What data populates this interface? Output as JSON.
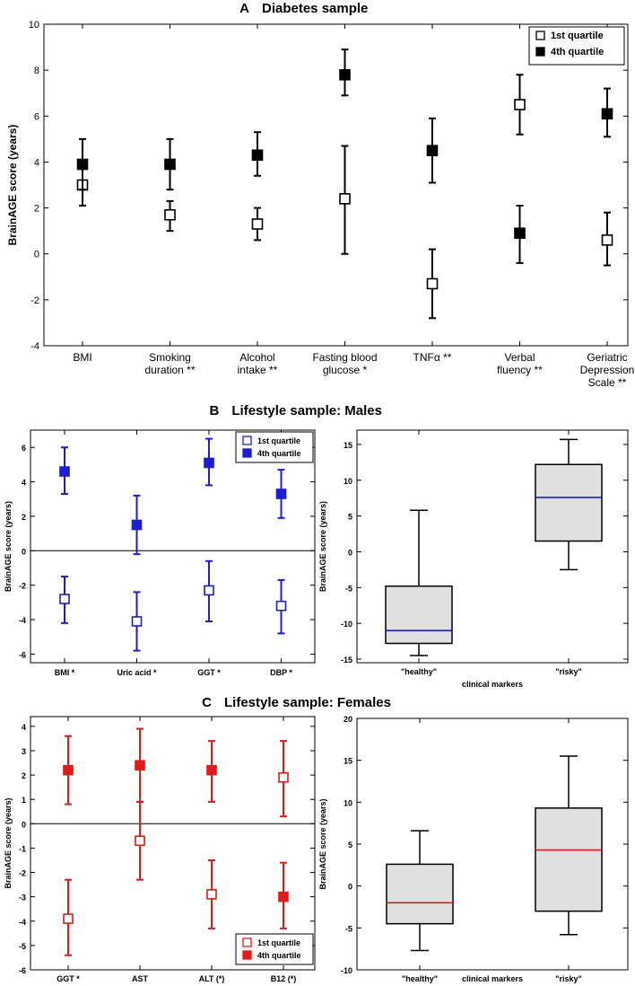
{
  "chart_data": [
    {
      "id": "A",
      "type": "scatter",
      "panel_label": "A",
      "title": "Diabetes sample",
      "ylabel": "BrainAGE score (years)",
      "xlabel": "",
      "ylim": [
        -4,
        10
      ],
      "yticks": [
        -4,
        -2,
        0,
        2,
        4,
        6,
        8,
        10
      ],
      "zero_line": false,
      "color": "#000000",
      "categories": [
        "BMI",
        "Smoking\nduration **",
        "Alcohol\nintake **",
        "Fasting blood\nglucose *",
        "TNFα **",
        "Verbal\nfluency **",
        "Geriatric\nDepression\nScale **"
      ],
      "legend": {
        "position": "top-right",
        "entries": [
          "1st quartile",
          "4th quartile"
        ]
      },
      "series": [
        {
          "name": "1st quartile",
          "marker": "open-square",
          "values": [
            3.0,
            1.7,
            1.3,
            2.4,
            -1.3,
            6.5,
            0.6
          ],
          "lower": [
            2.1,
            1.0,
            0.6,
            0.0,
            -2.8,
            5.2,
            -0.5
          ],
          "upper": [
            3.9,
            2.3,
            2.0,
            4.7,
            0.2,
            7.8,
            1.8
          ]
        },
        {
          "name": "4th quartile",
          "marker": "filled-square",
          "values": [
            3.9,
            3.9,
            4.3,
            7.8,
            4.5,
            0.9,
            6.1
          ],
          "lower": [
            2.8,
            2.8,
            3.4,
            6.9,
            3.1,
            -0.4,
            5.1
          ],
          "upper": [
            5.0,
            5.0,
            5.3,
            8.9,
            5.9,
            2.1,
            7.2
          ]
        }
      ]
    },
    {
      "id": "B",
      "type": "scatter",
      "panel_label": "B",
      "title": "Lifestyle sample: Males",
      "ylabel": "BrainAGE score (years)",
      "xlabel": "",
      "ylim": [
        -6.5,
        7
      ],
      "yticks": [
        -6,
        -4,
        -2,
        0,
        2,
        4,
        6
      ],
      "zero_line": true,
      "color": "#1d1dd8",
      "categories": [
        "BMI *",
        "Uric acid *",
        "GGT *",
        "DBP *"
      ],
      "legend": {
        "position": "top-right",
        "entries": [
          "1st quartile",
          "4th quartile"
        ]
      },
      "series": [
        {
          "name": "1st quartile",
          "marker": "open-square",
          "values": [
            -2.8,
            -4.1,
            -2.3,
            -3.2
          ],
          "lower": [
            -4.2,
            -5.8,
            -4.1,
            -4.8
          ],
          "upper": [
            -1.5,
            -2.4,
            -0.6,
            -1.7
          ]
        },
        {
          "name": "4th quartile",
          "marker": "filled-square",
          "values": [
            4.6,
            1.5,
            5.1,
            3.3
          ],
          "lower": [
            3.3,
            -0.2,
            3.8,
            1.9
          ],
          "upper": [
            6.0,
            3.2,
            6.5,
            4.7
          ]
        }
      ]
    },
    {
      "id": "B-box",
      "type": "box",
      "title": "",
      "ylabel": "BrainAGE score (years)",
      "xlabel": "clinical markers",
      "ylim": [
        -15.5,
        17
      ],
      "yticks": [
        -15,
        -10,
        -5,
        0,
        5,
        10,
        15
      ],
      "median_color": "#1d1dd8",
      "categories": [
        "\"healthy\"",
        "\"risky\""
      ],
      "boxes": [
        {
          "min": -14.5,
          "q1": -12.8,
          "median": -11.0,
          "q3": -4.8,
          "max": 5.8
        },
        {
          "min": -2.5,
          "q1": 1.5,
          "median": 7.6,
          "q3": 12.2,
          "max": 15.7
        }
      ]
    },
    {
      "id": "C",
      "type": "scatter",
      "panel_label": "C",
      "title": "Lifestyle sample: Females",
      "ylabel": "BrainAGE score (years)",
      "xlabel": "",
      "ylim": [
        -6,
        4.4
      ],
      "yticks": [
        -6,
        -5,
        -4,
        -3,
        -2,
        -1,
        0,
        1,
        2,
        3,
        4
      ],
      "zero_line": true,
      "color": "#e21a1a",
      "categories": [
        "GGT *",
        "AST",
        "ALT (*)",
        "B12 (*)"
      ],
      "legend": {
        "position": "bottom-right",
        "entries": [
          "1st quartile",
          "4th quartile"
        ]
      },
      "series": [
        {
          "name": "1st quartile",
          "marker": "open-square",
          "values": [
            -3.9,
            -0.7,
            -2.9,
            1.9
          ],
          "lower": [
            -5.4,
            -2.3,
            -4.3,
            0.3
          ],
          "upper": [
            -2.3,
            0.9,
            -1.5,
            3.4
          ]
        },
        {
          "name": "4th quartile",
          "marker": "filled-square",
          "values": [
            2.2,
            2.4,
            2.2,
            -3.0
          ],
          "lower": [
            0.8,
            0.9,
            0.9,
            -4.3
          ],
          "upper": [
            3.6,
            3.9,
            3.4,
            -1.6
          ]
        }
      ]
    },
    {
      "id": "C-box",
      "type": "box",
      "title": "",
      "ylabel": "BrainAGE score (years)",
      "xlabel": "clinical markers",
      "ylim": [
        -10,
        20
      ],
      "yticks": [
        -10,
        -5,
        0,
        5,
        10,
        15,
        20
      ],
      "median_color": "#e21a1a",
      "categories": [
        "\"healthy\"",
        "\"risky\""
      ],
      "boxes": [
        {
          "min": -7.7,
          "q1": -4.5,
          "median": -2.0,
          "q3": 2.6,
          "max": 6.6
        },
        {
          "min": -5.8,
          "q1": -3.0,
          "median": 4.3,
          "q3": 9.3,
          "max": 15.5
        }
      ]
    }
  ]
}
